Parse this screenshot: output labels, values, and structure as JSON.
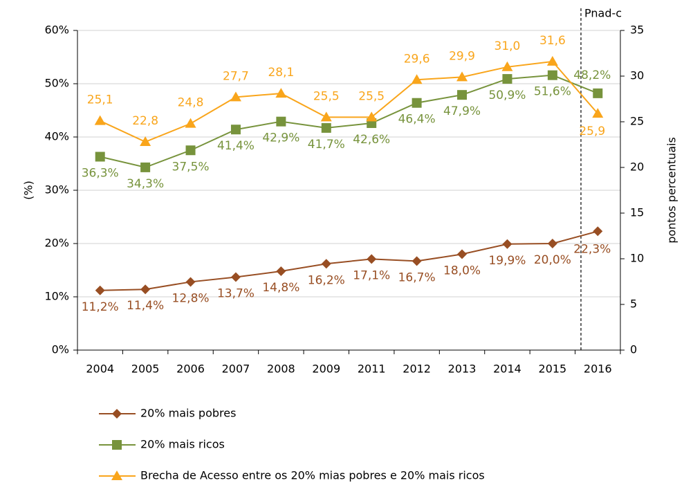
{
  "chart_data": {
    "type": "line",
    "categories": [
      "2004",
      "2005",
      "2006",
      "2007",
      "2008",
      "2009",
      "2011",
      "2012",
      "2013",
      "2014",
      "2015",
      "2016"
    ],
    "ylabel": "(%)",
    "y2label": "pontos percentuais",
    "annotation": "Pnad-c",
    "ylim": [
      0,
      60
    ],
    "yticks": [
      {
        "value": 0,
        "label": "0%"
      },
      {
        "value": 10,
        "label": "10%"
      },
      {
        "value": 20,
        "label": "20%"
      },
      {
        "value": 30,
        "label": "30%"
      },
      {
        "value": 40,
        "label": "40%"
      },
      {
        "value": 50,
        "label": "50%"
      },
      {
        "value": 60,
        "label": "60%"
      }
    ],
    "y2lim": [
      0,
      35
    ],
    "y2ticks": [
      0,
      5,
      10,
      15,
      20,
      25,
      30,
      35
    ],
    "grid": true,
    "legend": "bottom",
    "series": [
      {
        "name": "20% mais pobres",
        "color": "#984e23",
        "marker": "diamond",
        "values": [
          11.2,
          11.4,
          12.8,
          13.7,
          14.8,
          16.2,
          17.1,
          16.7,
          18.0,
          19.9,
          20.0,
          22.3
        ],
        "value_labels": [
          "11,2%",
          "11,4%",
          "12,8%",
          "13,7%",
          "14,8%",
          "16,2%",
          "17,1%",
          "16,7%",
          "18,0%",
          "19,9%",
          "20,0%",
          "22,3%"
        ]
      },
      {
        "name": "20% mais ricos",
        "color": "#77933c",
        "marker": "square",
        "values": [
          36.3,
          34.3,
          37.5,
          41.4,
          42.9,
          41.7,
          42.6,
          46.4,
          47.9,
          50.9,
          51.6,
          48.2
        ],
        "value_labels": [
          "36,3%",
          "34,3%",
          "37,5%",
          "41,4%",
          "42,9%",
          "41,7%",
          "42,6%",
          "46,4%",
          "47,9%",
          "50,9%",
          "51,6%",
          "48,2%"
        ]
      },
      {
        "name": "Brecha de Acesso entre os 20% mias pobres e 20% mais ricos",
        "color": "#f9a51b",
        "marker": "triangle",
        "axis": "y2",
        "values": [
          25.1,
          22.8,
          24.8,
          27.7,
          28.1,
          25.5,
          25.5,
          29.6,
          29.9,
          31.0,
          31.6,
          25.9
        ],
        "value_labels": [
          "25,1",
          "22,8",
          "24,8",
          "27,7",
          "28,1",
          "25,5",
          "25,5",
          "29,6",
          "29,9",
          "31,0",
          "31,6",
          "25,9"
        ]
      }
    ]
  }
}
